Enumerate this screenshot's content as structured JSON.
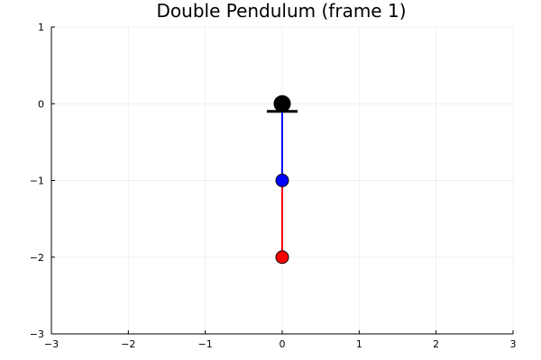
{
  "chart_data": {
    "type": "scatter",
    "title": "Double Pendulum (frame 1)",
    "xlabel": "",
    "ylabel": "",
    "xlim": [
      -3,
      3
    ],
    "ylim": [
      -3,
      1
    ],
    "xticks": [
      -3,
      -2,
      -1,
      0,
      1,
      2,
      3
    ],
    "yticks": [
      -3,
      -2,
      -1,
      0,
      1
    ],
    "xtick_labels": [
      "−3",
      "−2",
      "−1",
      "0",
      "1",
      "2",
      "3"
    ],
    "ytick_labels": [
      "−3",
      "−2",
      "−1",
      "0",
      "1"
    ],
    "grid": true,
    "legend": false,
    "pivot": {
      "x": 0,
      "y": 0,
      "color": "#000000",
      "base_half_width": 0.2,
      "base_y": -0.1
    },
    "rods": [
      {
        "from": [
          0,
          0
        ],
        "to": [
          0,
          -1
        ],
        "color": "#0000ff"
      },
      {
        "from": [
          0,
          -1
        ],
        "to": [
          0,
          -2
        ],
        "color": "#ff0000"
      }
    ],
    "bobs": [
      {
        "x": 0,
        "y": -1,
        "color": "#0000ff"
      },
      {
        "x": 0,
        "y": -2,
        "color": "#ff0000"
      }
    ]
  }
}
